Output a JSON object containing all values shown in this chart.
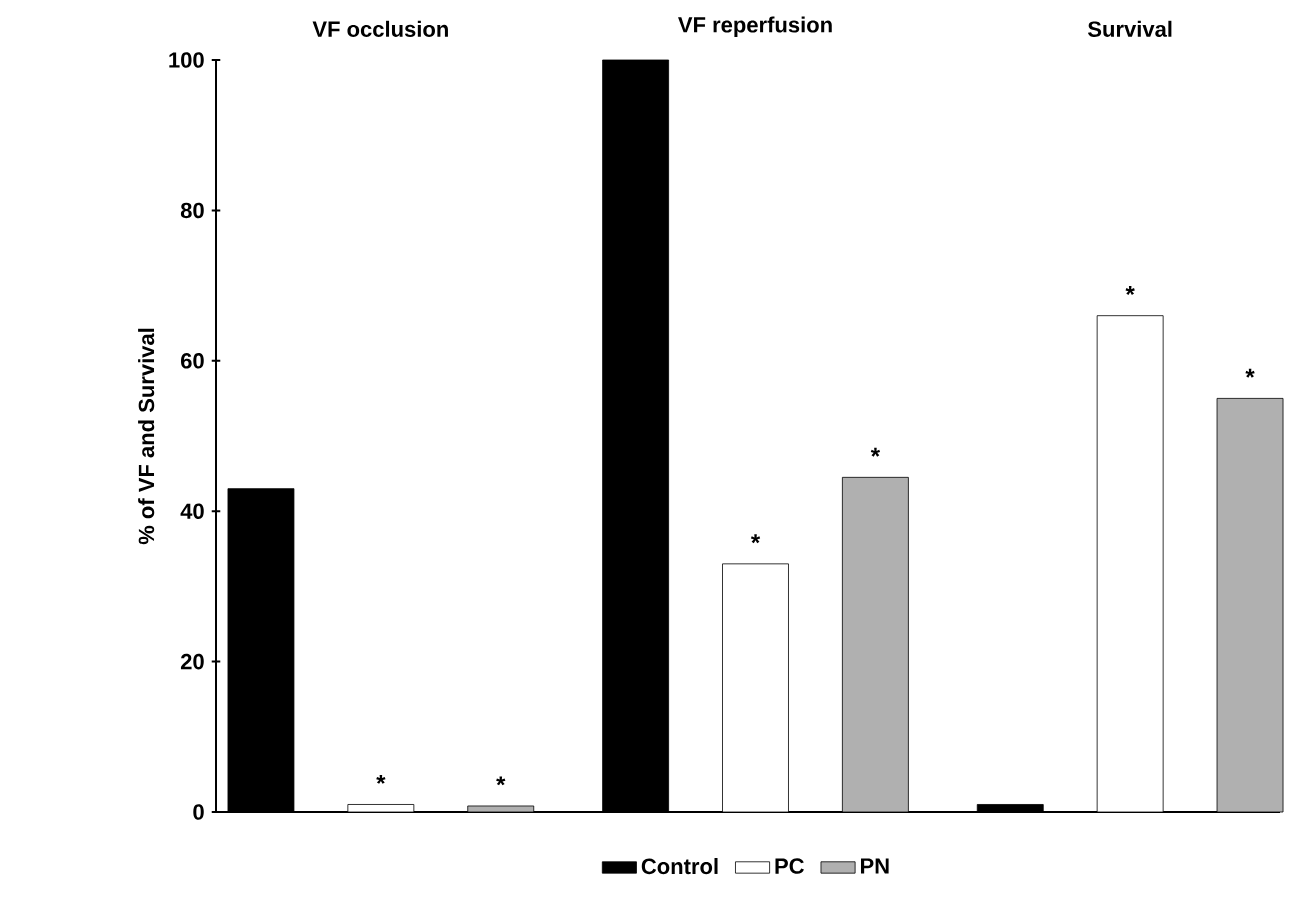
{
  "chart_data": {
    "type": "bar",
    "categories": [
      "VF occlusion",
      "VF reperfusion",
      "Survival"
    ],
    "ylabel": "% of VF and Survival",
    "ylim": [
      0,
      100
    ],
    "yticks": [
      0,
      20,
      40,
      60,
      80,
      100
    ],
    "legend": "bottom",
    "series": [
      {
        "name": "Control",
        "color": "#000000",
        "values": [
          43,
          100,
          1
        ],
        "value_labels": [
          null,
          null,
          null
        ]
      },
      {
        "name": "PC",
        "color": "#ffffff",
        "values": [
          1,
          33,
          66
        ],
        "value_labels": [
          "*",
          "*",
          "*"
        ]
      },
      {
        "name": "PN",
        "color": "#b0b0b0",
        "values": [
          0.8,
          44.5,
          55
        ],
        "value_labels": [
          "*",
          "*",
          "*"
        ]
      }
    ]
  }
}
